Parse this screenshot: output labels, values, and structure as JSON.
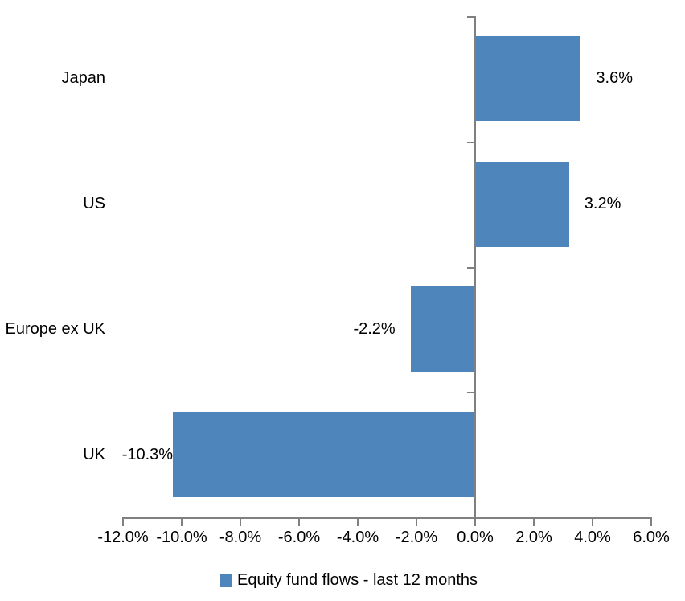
{
  "chart_data": {
    "type": "bar",
    "orientation": "horizontal",
    "title": "",
    "categories": [
      "Japan",
      "US",
      "Europe ex UK",
      "UK"
    ],
    "values": [
      3.6,
      3.2,
      -2.2,
      -10.3
    ],
    "value_labels": [
      "3.6%",
      "3.2%",
      "-2.2%",
      "-10.3%"
    ],
    "x_tick_values": [
      -12,
      -10,
      -8,
      -6,
      -4,
      -2,
      0,
      2,
      4,
      6
    ],
    "x_tick_labels": [
      "-12.0%",
      "-10.0%",
      "-8.0%",
      "-6.0%",
      "-4.0%",
      "-2.0%",
      "0.0%",
      "2.0%",
      "4.0%",
      "6.0%"
    ],
    "xlim": [
      -12,
      6
    ],
    "grid": false,
    "legend_position": "bottom",
    "legend_label": "Equity fund flows - last 12 months",
    "colors": {
      "bar": "#4e86bc",
      "axis": "#808080",
      "text": "#000000",
      "background": "#ffffff"
    }
  }
}
